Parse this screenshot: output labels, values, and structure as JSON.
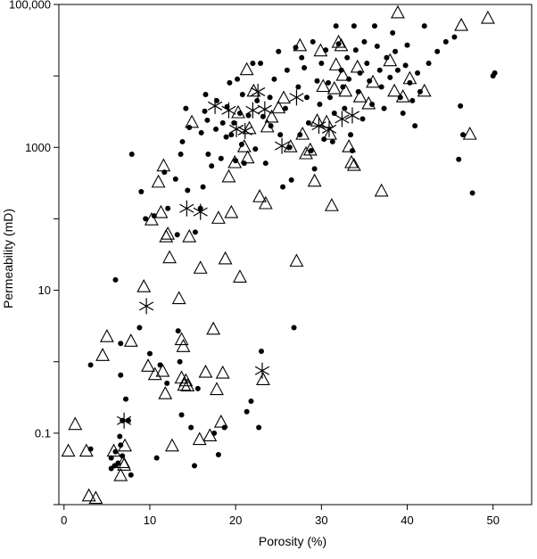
{
  "chart_data": {
    "type": "scatter",
    "title": "",
    "xlabel": "Porosity (%)",
    "ylabel": "Permeability (mD)",
    "xlim": [
      -0.6,
      54.5
    ],
    "ylim": [
      0.01,
      100000
    ],
    "y_scale": "log",
    "x_ticks": [
      {
        "value": 0,
        "label": "0"
      },
      {
        "value": 10,
        "label": "10"
      },
      {
        "value": 20,
        "label": "20"
      },
      {
        "value": 30,
        "label": "30"
      },
      {
        "value": 40,
        "label": "40"
      },
      {
        "value": 50,
        "label": "50"
      }
    ],
    "y_major_ticks": [
      {
        "value": 0.1,
        "label": "0.1"
      },
      {
        "value": 10,
        "label": "10"
      },
      {
        "value": 1000,
        "label": "1000"
      },
      {
        "value": 100000,
        "label": "100,000"
      }
    ],
    "y_minor_ticks": [
      0.01,
      1,
      100,
      10000
    ],
    "grid": false,
    "legend": "none",
    "series": [
      {
        "marker": "dot",
        "points": [
          [
            3.1,
            0.9
          ],
          [
            3.1,
            0.06
          ],
          [
            5.5,
            0.032
          ],
          [
            5.5,
            0.045
          ],
          [
            5.9,
            0.035
          ],
          [
            6.3,
            0.038
          ],
          [
            6.0,
            0.055
          ],
          [
            6.5,
            0.09
          ],
          [
            6.6,
            0.068
          ],
          [
            6.8,
            0.15
          ],
          [
            6.8,
            0.048
          ],
          [
            6.0,
            14
          ],
          [
            6.6,
            1.8
          ],
          [
            6.6,
            0.65
          ],
          [
            7.2,
            0.3
          ],
          [
            7.5,
            0.15
          ],
          [
            7.8,
            0.026
          ],
          [
            7.9,
            800
          ],
          [
            8.8,
            3.0
          ],
          [
            9.0,
            240
          ],
          [
            9.5,
            100
          ],
          [
            10.0,
            1.3
          ],
          [
            10.5,
            110
          ],
          [
            10.8,
            0.045
          ],
          [
            11.2,
            0.9
          ],
          [
            11.7,
            450
          ],
          [
            12.0,
            0.5
          ],
          [
            12.1,
            140
          ],
          [
            13.0,
            360
          ],
          [
            13.2,
            60
          ],
          [
            13.3,
            2.7
          ],
          [
            13.5,
            1.0
          ],
          [
            13.6,
            800
          ],
          [
            13.7,
            0.18
          ],
          [
            13.8,
            1200
          ],
          [
            14.2,
            3500
          ],
          [
            14.4,
            250
          ],
          [
            14.8,
            0.12
          ],
          [
            14.6,
            1900
          ],
          [
            15.2,
            0.035
          ],
          [
            15.3,
            65
          ],
          [
            15.6,
            0.42
          ],
          [
            15.9,
            140
          ],
          [
            16.0,
            1600
          ],
          [
            16.2,
            280
          ],
          [
            16.4,
            3200
          ],
          [
            16.5,
            5500
          ],
          [
            16.7,
            2400
          ],
          [
            16.8,
            800
          ],
          [
            17.2,
            550
          ],
          [
            17.5,
            0.1
          ],
          [
            17.7,
            1800
          ],
          [
            17.8,
            4500
          ],
          [
            18.0,
            0.05
          ],
          [
            18.3,
            700
          ],
          [
            18.5,
            2200
          ],
          [
            18.7,
            0.12
          ],
          [
            18.9,
            1400
          ],
          [
            19.0,
            3700
          ],
          [
            19.3,
            8000
          ],
          [
            19.5,
            1500
          ],
          [
            19.8,
            2200
          ],
          [
            20.0,
            650
          ],
          [
            20.2,
            9000
          ],
          [
            20.5,
            3000
          ],
          [
            20.7,
            1100
          ],
          [
            20.8,
            5500
          ],
          [
            21.0,
            600
          ],
          [
            21.3,
            0.2
          ],
          [
            21.5,
            2800
          ],
          [
            21.8,
            0.28
          ],
          [
            22.0,
            15000
          ],
          [
            22.3,
            950
          ],
          [
            22.5,
            4500
          ],
          [
            22.7,
            0.12
          ],
          [
            22.9,
            15000
          ],
          [
            23.0,
            1.4
          ],
          [
            23.2,
            2700
          ],
          [
            23.5,
            600
          ],
          [
            24.0,
            5000
          ],
          [
            24.1,
            2000
          ],
          [
            24.5,
            9000
          ],
          [
            25.0,
            22000
          ],
          [
            25.2,
            1500
          ],
          [
            25.5,
            280
          ],
          [
            25.8,
            3500
          ],
          [
            26.0,
            12000
          ],
          [
            26.3,
            1000
          ],
          [
            26.5,
            350
          ],
          [
            26.8,
            3.0
          ],
          [
            27.0,
            25000
          ],
          [
            27.3,
            7000
          ],
          [
            27.5,
            1500
          ],
          [
            27.7,
            18000
          ],
          [
            28.0,
            13000
          ],
          [
            28.3,
            5000
          ],
          [
            28.5,
            2200
          ],
          [
            28.8,
            900
          ],
          [
            29.0,
            30000
          ],
          [
            29.2,
            500
          ],
          [
            29.5,
            8500
          ],
          [
            29.8,
            4000
          ],
          [
            30.0,
            15000
          ],
          [
            30.3,
            1300
          ],
          [
            30.5,
            23000
          ],
          [
            30.8,
            8000
          ],
          [
            31.0,
            5000
          ],
          [
            31.3,
            1200
          ],
          [
            31.5,
            3000
          ],
          [
            31.7,
            50000
          ],
          [
            32.0,
            28000
          ],
          [
            32.3,
            12000
          ],
          [
            32.5,
            7000
          ],
          [
            32.7,
            3500
          ],
          [
            33.0,
            18000
          ],
          [
            33.2,
            9000
          ],
          [
            33.4,
            1500
          ],
          [
            33.6,
            900
          ],
          [
            33.8,
            50000
          ],
          [
            34.0,
            23000
          ],
          [
            34.3,
            6000
          ],
          [
            34.5,
            11000
          ],
          [
            34.8,
            2500
          ],
          [
            35.0,
            30000
          ],
          [
            35.3,
            15000
          ],
          [
            35.6,
            8500
          ],
          [
            35.9,
            4000
          ],
          [
            36.2,
            50000
          ],
          [
            36.5,
            26000
          ],
          [
            36.8,
            12000
          ],
          [
            37.0,
            7000
          ],
          [
            37.3,
            3500
          ],
          [
            37.6,
            18000
          ],
          [
            38.0,
            9500
          ],
          [
            38.3,
            40000
          ],
          [
            38.6,
            22000
          ],
          [
            38.9,
            12000
          ],
          [
            39.2,
            5000
          ],
          [
            39.5,
            3000
          ],
          [
            39.8,
            14000
          ],
          [
            40.0,
            27000
          ],
          [
            40.3,
            8000
          ],
          [
            40.6,
            4500
          ],
          [
            40.9,
            2000
          ],
          [
            41.2,
            11000
          ],
          [
            41.5,
            6000
          ],
          [
            42.0,
            50000
          ],
          [
            42.5,
            15000
          ],
          [
            43.5,
            22000
          ],
          [
            44.5,
            30000
          ],
          [
            45.5,
            35000
          ],
          [
            46.0,
            680
          ],
          [
            46.2,
            3800
          ],
          [
            46.5,
            1500
          ],
          [
            47.6,
            230
          ],
          [
            50.0,
            10000
          ],
          [
            50.2,
            11000
          ]
        ]
      },
      {
        "marker": "triangle",
        "points": [
          [
            0.5,
            0.055
          ],
          [
            1.3,
            0.13
          ],
          [
            2.6,
            0.055
          ],
          [
            2.9,
            0.013
          ],
          [
            3.7,
            0.012
          ],
          [
            4.5,
            1.2
          ],
          [
            5.0,
            2.2
          ],
          [
            5.8,
            0.055
          ],
          [
            6.6,
            0.025
          ],
          [
            6.9,
            0.038
          ],
          [
            7.0,
            0.035
          ],
          [
            7.1,
            0.065
          ],
          [
            7.8,
            1.9
          ],
          [
            9.3,
            11
          ],
          [
            9.8,
            0.85
          ],
          [
            10.2,
            95
          ],
          [
            10.6,
            0.65
          ],
          [
            11.0,
            320
          ],
          [
            11.3,
            120
          ],
          [
            11.5,
            0.72
          ],
          [
            11.6,
            540
          ],
          [
            11.8,
            0.35
          ],
          [
            11.9,
            55
          ],
          [
            12.1,
            60
          ],
          [
            12.3,
            28
          ],
          [
            12.6,
            0.065
          ],
          [
            13.4,
            7.5
          ],
          [
            13.7,
            0.58
          ],
          [
            13.7,
            2.0
          ],
          [
            13.9,
            1.6
          ],
          [
            14.0,
            0.46
          ],
          [
            14.2,
            0.53
          ],
          [
            14.4,
            0.45
          ],
          [
            14.6,
            55
          ],
          [
            14.9,
            2200
          ],
          [
            15.8,
            0.08
          ],
          [
            15.9,
            20
          ],
          [
            16.5,
            0.7
          ],
          [
            17.0,
            0.09
          ],
          [
            17.4,
            2.8
          ],
          [
            17.8,
            0.4
          ],
          [
            18.0,
            100
          ],
          [
            18.3,
            0.14
          ],
          [
            18.5,
            0.68
          ],
          [
            18.8,
            27
          ],
          [
            19.2,
            380
          ],
          [
            19.5,
            120
          ],
          [
            19.9,
            600
          ],
          [
            20.3,
            3000
          ],
          [
            20.5,
            15
          ],
          [
            21.0,
            1000
          ],
          [
            21.3,
            12000
          ],
          [
            21.4,
            700
          ],
          [
            21.6,
            1800
          ],
          [
            22.1,
            6000
          ],
          [
            22.8,
            200
          ],
          [
            23.5,
            160
          ],
          [
            23.2,
            0.55
          ],
          [
            23.7,
            1900
          ],
          [
            24.2,
            2600
          ],
          [
            25.0,
            3500
          ],
          [
            25.6,
            4800
          ],
          [
            26.4,
            1000
          ],
          [
            27.1,
            25
          ],
          [
            27.5,
            26000
          ],
          [
            27.8,
            1500
          ],
          [
            28.2,
            800
          ],
          [
            28.7,
            900
          ],
          [
            29.2,
            330
          ],
          [
            29.5,
            2300
          ],
          [
            29.9,
            22000
          ],
          [
            30.2,
            7000
          ],
          [
            30.6,
            2200
          ],
          [
            31.0,
            1500
          ],
          [
            31.2,
            150
          ],
          [
            31.5,
            6500
          ],
          [
            31.7,
            14000
          ],
          [
            32.0,
            29000
          ],
          [
            32.3,
            26000
          ],
          [
            32.5,
            10000
          ],
          [
            32.8,
            6000
          ],
          [
            33.2,
            1000
          ],
          [
            33.5,
            600
          ],
          [
            33.8,
            550
          ],
          [
            34.2,
            13000
          ],
          [
            34.5,
            5000
          ],
          [
            35.5,
            4000
          ],
          [
            36.0,
            8000
          ],
          [
            37.0,
            240
          ],
          [
            38.0,
            16000
          ],
          [
            38.5,
            6000
          ],
          [
            38.9,
            75000
          ],
          [
            39.5,
            5000
          ],
          [
            40.3,
            9000
          ],
          [
            42.0,
            6000
          ],
          [
            46.3,
            50000
          ],
          [
            47.3,
            1500
          ],
          [
            49.4,
            63000
          ]
        ]
      },
      {
        "marker": "asterisk",
        "points": [
          [
            7.0,
            0.15
          ],
          [
            9.6,
            6.0
          ],
          [
            14.3,
            140
          ],
          [
            15.9,
            125
          ],
          [
            17.6,
            3800
          ],
          [
            19.2,
            3300
          ],
          [
            20.1,
            1800
          ],
          [
            21.1,
            1700
          ],
          [
            22.0,
            3300
          ],
          [
            22.6,
            6000
          ],
          [
            23.1,
            0.75
          ],
          [
            23.4,
            3400
          ],
          [
            25.4,
            1050
          ],
          [
            27.1,
            5000
          ],
          [
            29.7,
            2000
          ],
          [
            30.9,
            1800
          ],
          [
            32.4,
            2500
          ],
          [
            33.6,
            2800
          ]
        ]
      }
    ]
  }
}
